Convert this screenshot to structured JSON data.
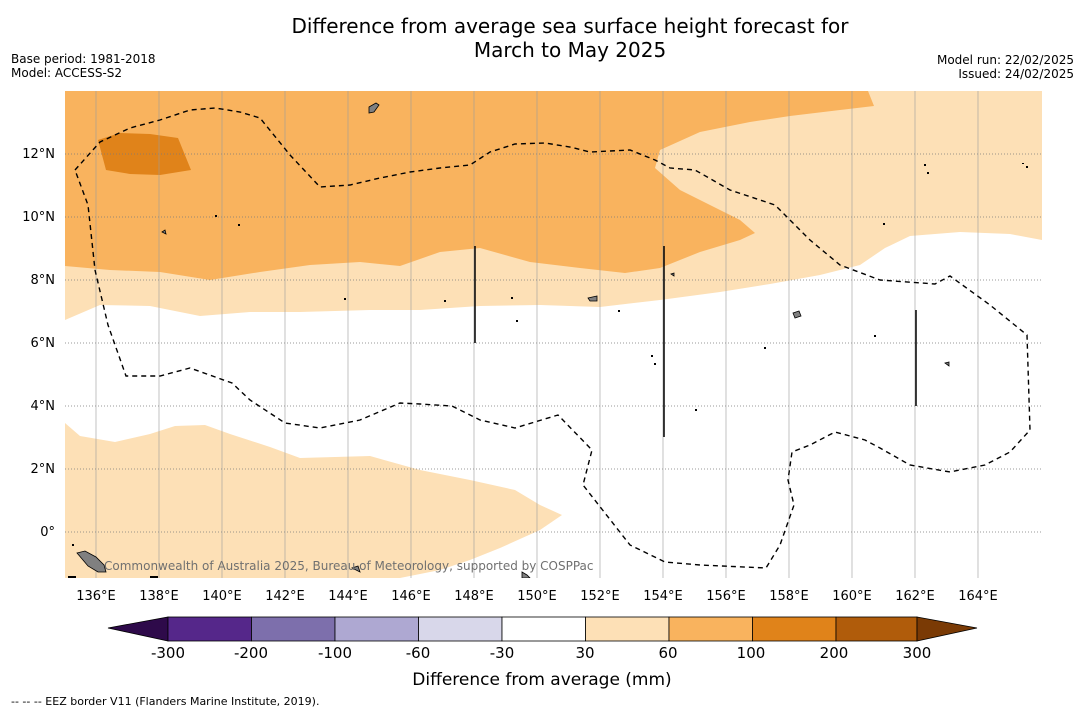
{
  "title_line1": "Difference from average sea surface height forecast for",
  "title_line2": "March to May 2025",
  "meta_left": [
    "Base period: 1981-2018",
    "Model: ACCESS-S2"
  ],
  "meta_right": [
    "Model run: 22/02/2025",
    "Issued: 24/02/2025"
  ],
  "attribution": "Commonwealth of Australia 2025, Bureau of Meteorology, supported by COSPPac",
  "footnote": "--  --  -- EEZ border V11 (Flanders Marine Institute, 2019).",
  "map": {
    "lon_labels": [
      "136°E",
      "138°E",
      "140°E",
      "142°E",
      "144°E",
      "146°E",
      "148°E",
      "150°E",
      "152°E",
      "154°E",
      "156°E",
      "158°E",
      "160°E",
      "162°E",
      "164°E"
    ],
    "lat_labels": [
      "12°N",
      "10°N",
      "8°N",
      "6°N",
      "4°N",
      "2°N",
      "0°"
    ]
  },
  "colorbar": {
    "title": "Difference from average (mm)",
    "tick_labels": [
      "-300",
      "-200",
      "-100",
      "-60",
      "-30",
      "30",
      "60",
      "100",
      "200",
      "300"
    ],
    "colors": [
      "#2e0a4a",
      "#55278a",
      "#7d6fac",
      "#aea8d2",
      "#d8d7ea",
      "#ffffff",
      "#fde0b6",
      "#f9b35e",
      "#e0831a",
      "#b05c0b",
      "#7a3a05"
    ]
  },
  "legend_colors": {
    "light_orange": "#fde0b6",
    "mid_orange": "#f9b35e",
    "dark_orange": "#e0831a"
  }
}
